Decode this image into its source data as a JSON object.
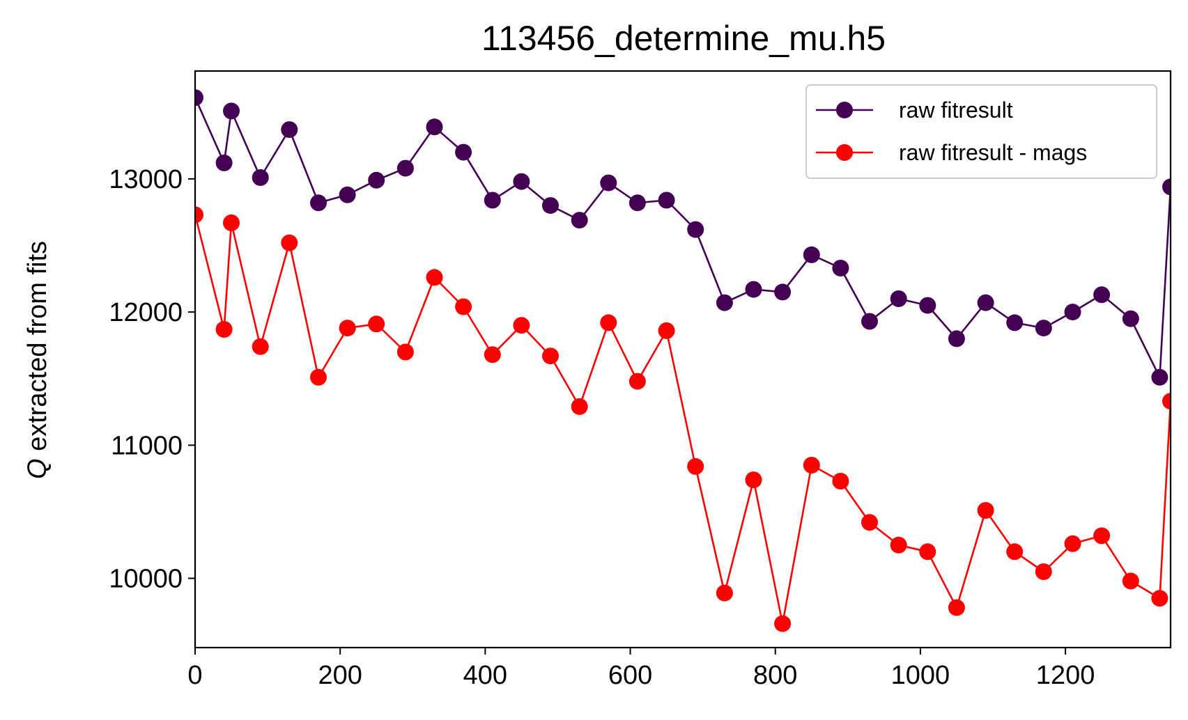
{
  "chart_data": {
    "type": "line",
    "title": "113456_determine_mu.h5",
    "xlabel": "",
    "ylabel_italic": "Q",
    "ylabel_rest": " extracted from fits",
    "xlim": [
      0,
      1345
    ],
    "ylim": [
      9480,
      13810
    ],
    "xticks": [
      0,
      200,
      400,
      600,
      800,
      1000,
      1200
    ],
    "xtick_labels": [
      "0",
      "200",
      "400",
      "600",
      "800",
      "1000",
      "1200"
    ],
    "yticks": [
      10000,
      11000,
      12000,
      13000
    ],
    "ytick_labels": [
      "10000",
      "11000",
      "12000",
      "13000"
    ],
    "grid": false,
    "legend_position": "top-right",
    "x": [
      0,
      40,
      50,
      90,
      130,
      170,
      210,
      250,
      290,
      330,
      370,
      410,
      450,
      490,
      530,
      570,
      610,
      650,
      690,
      730,
      770,
      810,
      850,
      890,
      930,
      970,
      1010,
      1050,
      1090,
      1130,
      1170,
      1210,
      1250,
      1290,
      1330,
      1345
    ],
    "series": [
      {
        "name": "raw fitresult",
        "color": "#440154",
        "values": [
          13610,
          13120,
          13510,
          13010,
          13370,
          12820,
          12880,
          12990,
          13080,
          13390,
          13200,
          12840,
          12980,
          12800,
          12690,
          12970,
          12820,
          12840,
          12620,
          12070,
          12170,
          12150,
          12430,
          12330,
          11930,
          12100,
          12050,
          11800,
          12070,
          11920,
          11880,
          12000,
          12130,
          11950,
          11510,
          12940
        ]
      },
      {
        "name": "raw fitresult - mags",
        "color": "#ff0000",
        "values": [
          12730,
          11870,
          12670,
          11740,
          12520,
          11510,
          11880,
          11910,
          11700,
          12260,
          12040,
          11680,
          11900,
          11670,
          11290,
          11920,
          11480,
          11860,
          10840,
          9890,
          10740,
          9660,
          10850,
          10730,
          10420,
          10250,
          10200,
          9780,
          10510,
          10200,
          10050,
          10260,
          10320,
          9980,
          9850,
          11330
        ]
      }
    ]
  }
}
